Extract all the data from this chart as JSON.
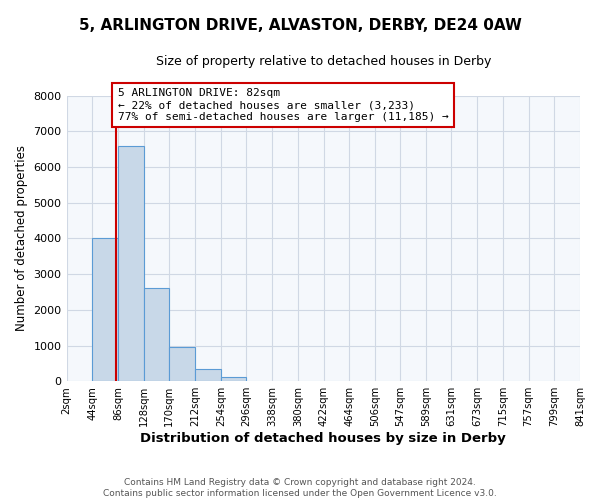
{
  "title": "5, ARLINGTON DRIVE, ALVASTON, DERBY, DE24 0AW",
  "subtitle": "Size of property relative to detached houses in Derby",
  "xlabel": "Distribution of detached houses by size in Derby",
  "ylabel": "Number of detached properties",
  "bar_values": [
    0,
    4000,
    6600,
    2600,
    950,
    330,
    120,
    0,
    0,
    0,
    0,
    0,
    0,
    0,
    0,
    0,
    0,
    0,
    0,
    0
  ],
  "bin_edges": [
    2,
    44,
    86,
    128,
    170,
    212,
    254,
    296,
    338,
    380,
    422,
    464,
    506,
    547,
    589,
    631,
    673,
    715,
    757,
    799,
    841
  ],
  "tick_labels": [
    "2sqm",
    "44sqm",
    "86sqm",
    "128sqm",
    "170sqm",
    "212sqm",
    "254sqm",
    "296sqm",
    "338sqm",
    "380sqm",
    "422sqm",
    "464sqm",
    "506sqm",
    "547sqm",
    "589sqm",
    "631sqm",
    "673sqm",
    "715sqm",
    "757sqm",
    "799sqm",
    "841sqm"
  ],
  "ylim": [
    0,
    8000
  ],
  "yticks": [
    0,
    1000,
    2000,
    3000,
    4000,
    5000,
    6000,
    7000,
    8000
  ],
  "bar_color": "#c8d8e8",
  "bar_edge_color": "#5b9bd5",
  "property_line_x": 82,
  "property_line_color": "#cc0000",
  "annotation_line1": "5 ARLINGTON DRIVE: 82sqm",
  "annotation_line2": "← 22% of detached houses are smaller (3,233)",
  "annotation_line3": "77% of semi-detached houses are larger (11,185) →",
  "annotation_box_color": "#ffffff",
  "annotation_box_edge": "#cc0000",
  "bg_color": "#f5f8fc",
  "grid_color": "#d0d8e4",
  "footer": "Contains HM Land Registry data © Crown copyright and database right 2024.\nContains public sector information licensed under the Open Government Licence v3.0."
}
